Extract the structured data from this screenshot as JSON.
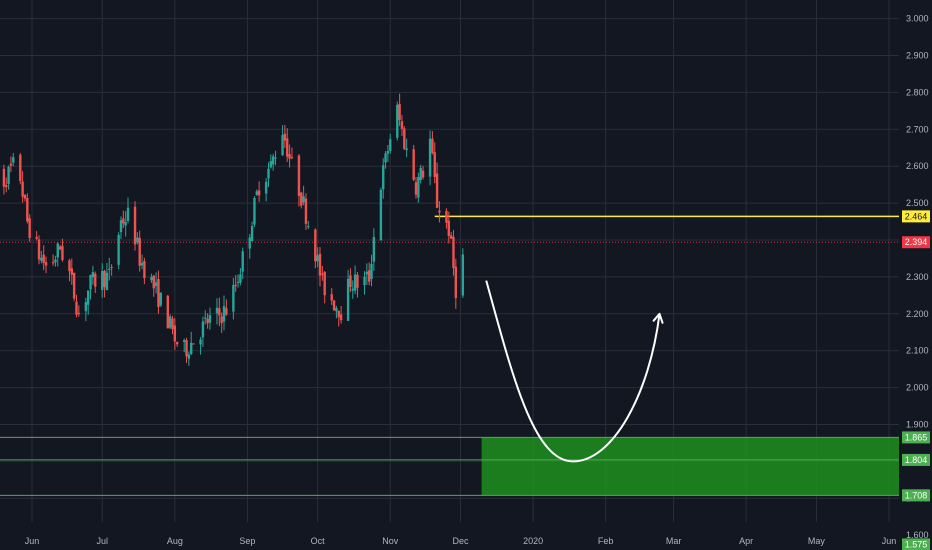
{
  "chart_data": {
    "type": "candlestick",
    "title": "",
    "ylim": [
      1.55,
      3.03
    ],
    "x_range": [
      "2019-05-15",
      "2020-06-15"
    ],
    "grid": true,
    "y_ticks": [
      "1.600",
      "1.700",
      "1.800",
      "1.900",
      "2.000",
      "2.100",
      "2.200",
      "2.300",
      "2.400",
      "2.500",
      "2.600",
      "2.700",
      "2.800",
      "2.900",
      "3.000"
    ],
    "y_tick_values": [
      1.6,
      1.7,
      1.8,
      1.9,
      2.0,
      2.1,
      2.2,
      2.3,
      2.4,
      2.5,
      2.6,
      2.7,
      2.8,
      2.9,
      3.0
    ],
    "x_ticks": [
      {
        "label": "Jun",
        "date": "2019-06-01"
      },
      {
        "label": "Jul",
        "date": "2019-07-01"
      },
      {
        "label": "Aug",
        "date": "2019-08-01"
      },
      {
        "label": "Sep",
        "date": "2019-09-01"
      },
      {
        "label": "Oct",
        "date": "2019-10-01"
      },
      {
        "label": "Nov",
        "date": "2019-11-01"
      },
      {
        "label": "Dec",
        "date": "2019-12-01"
      },
      {
        "label": "2020",
        "date": "2020-01-01"
      },
      {
        "label": "Feb",
        "date": "2020-02-01"
      },
      {
        "label": "Mar",
        "date": "2020-03-01"
      },
      {
        "label": "Apr",
        "date": "2020-04-01"
      },
      {
        "label": "May",
        "date": "2020-05-01"
      },
      {
        "label": "Jun",
        "date": "2020-06-01"
      }
    ],
    "close_path": [
      [
        "2019-05-15",
        2.6
      ],
      [
        "2019-05-20",
        2.56
      ],
      [
        "2019-05-24",
        2.6
      ],
      [
        "2019-05-27",
        2.57
      ],
      [
        "2019-05-30",
        2.45
      ],
      [
        "2019-06-04",
        2.36
      ],
      [
        "2019-06-08",
        2.32
      ],
      [
        "2019-06-13",
        2.38
      ],
      [
        "2019-06-17",
        2.31
      ],
      [
        "2019-06-21",
        2.2
      ],
      [
        "2019-06-26",
        2.28
      ],
      [
        "2019-06-30",
        2.3
      ],
      [
        "2019-07-04",
        2.3
      ],
      [
        "2019-07-09",
        2.45
      ],
      [
        "2019-07-13",
        2.47
      ],
      [
        "2019-07-17",
        2.35
      ],
      [
        "2019-07-21",
        2.3
      ],
      [
        "2019-07-27",
        2.22
      ],
      [
        "2019-08-01",
        2.13
      ],
      [
        "2019-08-05",
        2.1
      ],
      [
        "2019-08-09",
        2.13
      ],
      [
        "2019-08-15",
        2.18
      ],
      [
        "2019-08-21",
        2.2
      ],
      [
        "2019-08-24",
        2.22
      ],
      [
        "2019-08-28",
        2.3
      ],
      [
        "2019-09-01",
        2.4
      ],
      [
        "2019-09-06",
        2.55
      ],
      [
        "2019-09-11",
        2.6
      ],
      [
        "2019-09-16",
        2.7
      ],
      [
        "2019-09-20",
        2.6
      ],
      [
        "2019-09-24",
        2.52
      ],
      [
        "2019-09-29",
        2.4
      ],
      [
        "2019-10-03",
        2.28
      ],
      [
        "2019-10-07",
        2.24
      ],
      [
        "2019-10-11",
        2.21
      ],
      [
        "2019-10-15",
        2.29
      ],
      [
        "2019-10-19",
        2.28
      ],
      [
        "2019-10-23",
        2.3
      ],
      [
        "2019-10-27",
        2.52
      ],
      [
        "2019-11-01",
        2.68
      ],
      [
        "2019-11-04",
        2.75
      ],
      [
        "2019-11-08",
        2.64
      ],
      [
        "2019-11-12",
        2.55
      ],
      [
        "2019-11-16",
        2.6
      ],
      [
        "2019-11-18",
        2.67
      ],
      [
        "2019-11-21",
        2.5
      ],
      [
        "2019-11-26",
        2.43
      ],
      [
        "2019-11-29",
        2.27
      ],
      [
        "2019-12-02",
        2.35
      ]
    ],
    "horizontal_lines": [
      {
        "value": 2.464,
        "label": "2.464",
        "color": "#ffeb3b",
        "start_date": "2019-11-20"
      },
      {
        "value": 2.394,
        "label": "2.394",
        "color": "#f23645",
        "style": "dotted"
      },
      {
        "value": 1.865,
        "label": "1.865",
        "color": "#4caf50"
      },
      {
        "value": 1.804,
        "label": "1.804",
        "color": "#4caf50"
      },
      {
        "value": 1.708,
        "label": "1.708",
        "color": "#4caf50"
      },
      {
        "value": 1.575,
        "label": "1.575",
        "color": "#4caf50"
      }
    ],
    "zone": {
      "from_date": "2019-12-10",
      "y_top": 1.865,
      "y_bottom": 1.708,
      "color": "#1e8f1e"
    },
    "projection": {
      "start": [
        "2019-12-12",
        2.29
      ],
      "bottom": [
        "2020-01-18",
        1.8
      ],
      "end": [
        "2020-02-24",
        2.2
      ],
      "color": "#ffffff"
    },
    "colors": {
      "up": "#26a69a",
      "down": "#ef5350",
      "background": "#131722",
      "grid": "#2a2e39"
    }
  }
}
